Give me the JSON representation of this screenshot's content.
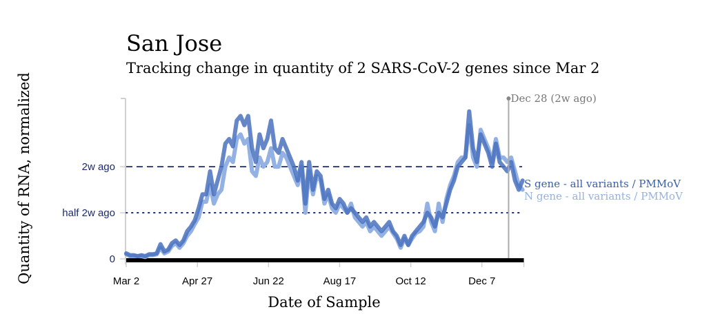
{
  "chart_data": {
    "type": "line",
    "title": "San Jose",
    "subtitle": "Tracking change in quantity of 2 SARS-CoV-2 genes since Mar 2",
    "xlabel": "Date of Sample",
    "ylabel": "Quantity of RNA, normalized",
    "x_ticks": [
      "Mar 2",
      "Apr 27",
      "Jun 22",
      "Aug 17",
      "Oct 12",
      "Dec 7"
    ],
    "x_tick_days": [
      0,
      56,
      112,
      168,
      224,
      280
    ],
    "x_range_days": [
      0,
      313
    ],
    "y_ticks": [
      {
        "label": "0",
        "value": 0
      },
      {
        "label": "half 2w ago",
        "value": 0.5
      },
      {
        "label": "2w ago",
        "value": 1.0
      }
    ],
    "ylim": [
      0,
      1.74
    ],
    "reference_lines": [
      {
        "name": "2w ago",
        "value": 1.0,
        "style": "dashed",
        "color": "#1a2a6c"
      },
      {
        "name": "half 2w ago",
        "value": 0.5,
        "style": "dotted",
        "color": "#1a2a6c"
      }
    ],
    "annotation": {
      "label": "Dec 28 (2w ago)",
      "day": 301,
      "color": "#999999"
    },
    "legend_placement": "right",
    "series": [
      {
        "name": "S gene - all variants / PMMoV",
        "color": "#4a72be",
        "days": [
          0,
          3,
          6,
          9,
          12,
          15,
          18,
          21,
          24,
          27,
          30,
          33,
          36,
          39,
          42,
          45,
          48,
          51,
          54,
          57,
          60,
          63,
          66,
          69,
          72,
          75,
          78,
          81,
          84,
          87,
          90,
          93,
          96,
          99,
          102,
          105,
          108,
          111,
          114,
          117,
          120,
          123,
          126,
          129,
          132,
          135,
          138,
          141,
          144,
          147,
          150,
          153,
          156,
          159,
          162,
          165,
          168,
          171,
          174,
          177,
          180,
          183,
          186,
          189,
          192,
          195,
          198,
          201,
          204,
          207,
          210,
          213,
          216,
          219,
          222,
          225,
          228,
          231,
          234,
          237,
          240,
          243,
          246,
          249,
          252,
          255,
          258,
          261,
          264,
          267,
          270,
          273,
          276,
          279,
          282,
          285,
          288,
          291,
          294,
          297,
          300,
          303,
          306,
          309,
          312
        ],
        "values": [
          0.06,
          0.04,
          0.04,
          0.03,
          0.04,
          0.03,
          0.05,
          0.05,
          0.06,
          0.16,
          0.08,
          0.1,
          0.17,
          0.2,
          0.15,
          0.2,
          0.3,
          0.35,
          0.42,
          0.55,
          0.7,
          0.7,
          0.95,
          0.7,
          0.85,
          1.0,
          1.25,
          1.3,
          1.22,
          1.5,
          1.55,
          1.45,
          1.55,
          1.2,
          1.05,
          1.35,
          1.2,
          1.3,
          1.5,
          1.2,
          1.15,
          1.3,
          1.2,
          1.1,
          1.0,
          0.85,
          1.05,
          0.6,
          1.05,
          0.75,
          0.95,
          0.9,
          0.65,
          0.75,
          0.6,
          0.55,
          0.65,
          0.6,
          0.5,
          0.55,
          0.5,
          0.45,
          0.4,
          0.45,
          0.35,
          0.4,
          0.35,
          0.3,
          0.35,
          0.4,
          0.3,
          0.25,
          0.15,
          0.25,
          0.15,
          0.25,
          0.3,
          0.35,
          0.4,
          0.5,
          0.45,
          0.35,
          0.5,
          0.45,
          0.6,
          0.75,
          0.85,
          1.0,
          1.05,
          1.1,
          1.6,
          1.2,
          1.05,
          1.35,
          1.25,
          1.15,
          1.0,
          1.25,
          1.05,
          1.0,
          0.95,
          1.05,
          0.85,
          0.75,
          0.85
        ],
        "_note": "values normalized so that '2w ago' = 1.0"
      },
      {
        "name": "N gene - all variants / PMMoV",
        "color": "#93b1e3",
        "days": [
          0,
          3,
          6,
          9,
          12,
          15,
          18,
          21,
          24,
          27,
          30,
          33,
          36,
          39,
          42,
          45,
          48,
          51,
          54,
          57,
          60,
          63,
          66,
          69,
          72,
          75,
          78,
          81,
          84,
          87,
          90,
          93,
          96,
          99,
          102,
          105,
          108,
          111,
          114,
          117,
          120,
          123,
          126,
          129,
          132,
          135,
          138,
          141,
          144,
          147,
          150,
          153,
          156,
          159,
          162,
          165,
          168,
          171,
          174,
          177,
          180,
          183,
          186,
          189,
          192,
          195,
          198,
          201,
          204,
          207,
          210,
          213,
          216,
          219,
          222,
          225,
          228,
          231,
          234,
          237,
          240,
          243,
          246,
          249,
          252,
          255,
          258,
          261,
          264,
          267,
          270,
          273,
          276,
          279,
          282,
          285,
          288,
          291,
          294,
          297,
          300,
          303,
          306,
          309,
          312
        ],
        "values": [
          0.05,
          0.03,
          0.03,
          0.03,
          0.03,
          0.02,
          0.04,
          0.04,
          0.05,
          0.12,
          0.06,
          0.08,
          0.14,
          0.17,
          0.12,
          0.17,
          0.25,
          0.3,
          0.38,
          0.45,
          0.62,
          0.62,
          0.8,
          0.6,
          0.7,
          0.75,
          1.0,
          1.1,
          1.05,
          1.3,
          1.35,
          1.25,
          1.3,
          0.95,
          0.9,
          1.1,
          1.0,
          1.05,
          1.2,
          1.0,
          1.0,
          1.15,
          1.1,
          1.0,
          0.9,
          0.8,
          1.0,
          0.5,
          0.95,
          0.7,
          0.9,
          0.85,
          0.6,
          0.7,
          0.55,
          0.5,
          0.6,
          0.55,
          0.5,
          0.6,
          0.45,
          0.4,
          0.35,
          0.4,
          0.3,
          0.35,
          0.3,
          0.25,
          0.3,
          0.35,
          0.28,
          0.22,
          0.12,
          0.22,
          0.15,
          0.22,
          0.28,
          0.3,
          0.35,
          0.6,
          0.4,
          0.3,
          0.6,
          0.4,
          0.65,
          0.8,
          0.9,
          1.05,
          1.1,
          1.1,
          1.45,
          1.1,
          1.0,
          1.4,
          1.3,
          1.2,
          1.05,
          1.3,
          1.1,
          1.1,
          1.05,
          1.1,
          0.95,
          0.8,
          0.75
        ]
      }
    ]
  }
}
